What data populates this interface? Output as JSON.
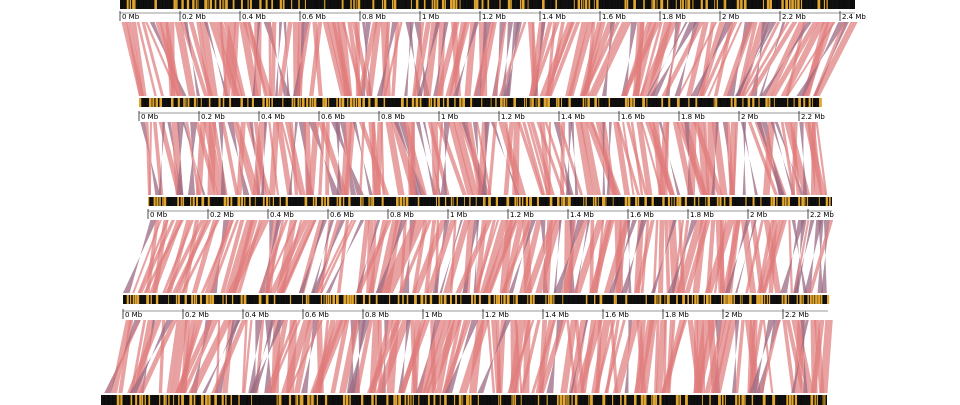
{
  "diagram": {
    "type": "genome-synteny-comparison",
    "colors": {
      "background": "#ffffff",
      "genome_bar": "#0a0a0a",
      "gene_forward": "#e0a630",
      "gene_reverse": "#111111",
      "link_forward": "#e07a7a",
      "link_reverse": "#9a6a82",
      "tick": "#000000"
    },
    "genomes": [
      {
        "length_mb": 2.45,
        "ticks": [
          "0 Mb",
          "0.2 Mb",
          "0.4 Mb",
          "0.6 Mb",
          "0.8 Mb",
          "1 Mb",
          "1.2 Mb",
          "1.4 Mb",
          "1.6 Mb",
          "1.8 Mb",
          "2 Mb",
          "2.2 Mb",
          "2.4 Mb"
        ]
      },
      {
        "length_mb": 2.27,
        "ticks": [
          "0 Mb",
          "0.2 Mb",
          "0.4 Mb",
          "0.6 Mb",
          "0.8 Mb",
          "1 Mb",
          "1.2 Mb",
          "1.4 Mb",
          "1.6 Mb",
          "1.8 Mb",
          "2 Mb",
          "2.2 Mb"
        ]
      },
      {
        "length_mb": 2.28,
        "ticks": [
          "0 Mb",
          "0.2 Mb",
          "0.4 Mb",
          "0.6 Mb",
          "0.8 Mb",
          "1 Mb",
          "1.2 Mb",
          "1.4 Mb",
          "1.6 Mb",
          "1.8 Mb",
          "2 Mb",
          "2.2 Mb"
        ]
      },
      {
        "length_mb": 2.35,
        "ticks": [
          "0 Mb",
          "0.2 Mb",
          "0.4 Mb",
          "0.6 Mb",
          "0.8 Mb",
          "1 Mb",
          "1.2 Mb",
          "1.4 Mb",
          "1.6 Mb",
          "1.8 Mb",
          "2 Mb",
          "2.2 Mb"
        ]
      },
      {
        "length_mb": 2.42,
        "ticks": []
      }
    ]
  }
}
